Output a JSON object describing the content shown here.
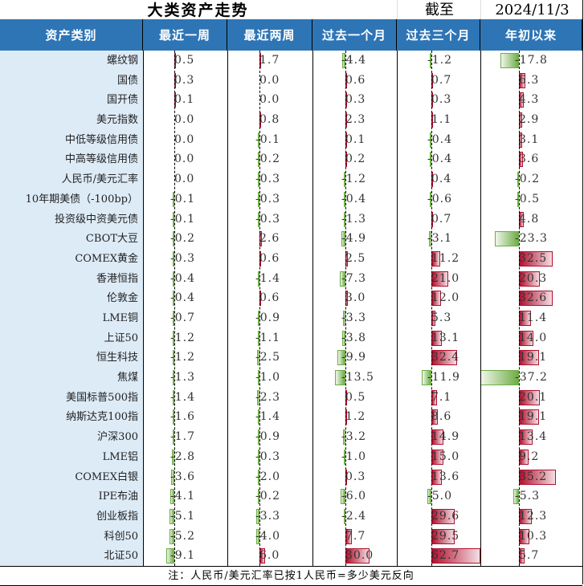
{
  "header": {
    "title": "大类资产走势",
    "as_of_label": "截至",
    "date": "2024/11/3"
  },
  "colors": {
    "header_bg": "#2e75b6",
    "label_bg": "#ddebf7",
    "positive": "#b0102e",
    "negative": "#70ad47"
  },
  "chart_data": {
    "type": "table",
    "title": "大类资产走势",
    "columns": [
      "资产类别",
      "最近一周",
      "最近两周",
      "过去一个月",
      "过去三个月",
      "年初以来"
    ],
    "rows": [
      {
        "asset": "螺纹钢",
        "values": [
          0.5,
          1.7,
          -4.4,
          -1.2,
          -17.8
        ]
      },
      {
        "asset": "国债",
        "values": [
          0.3,
          0.0,
          0.6,
          0.7,
          6.3
        ]
      },
      {
        "asset": "国开债",
        "values": [
          0.1,
          0.0,
          0.3,
          0.3,
          4.3
        ]
      },
      {
        "asset": "美元指数",
        "values": [
          0.0,
          0.8,
          2.3,
          1.1,
          2.9
        ]
      },
      {
        "asset": "中低等级信用债",
        "values": [
          0.0,
          -0.1,
          0.1,
          -0.4,
          3.1
        ]
      },
      {
        "asset": "中高等级信用债",
        "values": [
          0.0,
          -0.2,
          0.2,
          -0.4,
          3.6
        ]
      },
      {
        "asset": "人民币/美元汇率",
        "values": [
          0.0,
          -0.3,
          -1.2,
          0.4,
          -0.2
        ]
      },
      {
        "asset": "10年期美债（-100bp）",
        "values": [
          -0.1,
          -0.3,
          -0.4,
          -0.6,
          -0.5
        ]
      },
      {
        "asset": "投资级中资美元债",
        "values": [
          -0.1,
          -0.3,
          -1.3,
          0.7,
          4.8
        ]
      },
      {
        "asset": "CBOT大豆",
        "values": [
          -0.2,
          2.6,
          -4.9,
          -3.1,
          -23.3
        ]
      },
      {
        "asset": "COMEX黄金",
        "values": [
          -0.3,
          0.6,
          2.5,
          11.2,
          32.5
        ]
      },
      {
        "asset": "香港恒指",
        "values": [
          -0.4,
          -1.4,
          -7.3,
          21.0,
          20.3
        ]
      },
      {
        "asset": "伦敦金",
        "values": [
          -0.4,
          0.6,
          3.0,
          12.0,
          32.6
        ]
      },
      {
        "asset": "LME铜",
        "values": [
          -0.7,
          -0.9,
          -3.3,
          5.3,
          11.4
        ]
      },
      {
        "asset": "上证50",
        "values": [
          -1.2,
          -1.1,
          -3.8,
          13.1,
          14.0
        ]
      },
      {
        "asset": "恒生科技",
        "values": [
          -1.2,
          -2.5,
          -9.9,
          32.4,
          19.1
        ]
      },
      {
        "asset": "焦煤",
        "values": [
          -1.3,
          -1.0,
          -13.5,
          -11.9,
          -37.2
        ]
      },
      {
        "asset": "美国标普500指",
        "values": [
          -1.4,
          -2.3,
          0.5,
          7.1,
          20.1
        ]
      },
      {
        "asset": "纳斯达克100指",
        "values": [
          -1.6,
          -1.4,
          1.2,
          8.6,
          19.1
        ]
      },
      {
        "asset": "沪深300",
        "values": [
          -1.7,
          -0.9,
          -3.2,
          14.9,
          13.4
        ]
      },
      {
        "asset": "LME铝",
        "values": [
          -2.8,
          -0.3,
          -1.0,
          15.0,
          9.2
        ]
      },
      {
        "asset": "COMEX白银",
        "values": [
          -3.6,
          -2.0,
          0.3,
          13.6,
          35.2
        ]
      },
      {
        "asset": "IPE布油",
        "values": [
          -4.1,
          -0.2,
          -6.0,
          -5.0,
          -5.3
        ]
      },
      {
        "asset": "创业板指",
        "values": [
          -5.1,
          -3.3,
          -2.4,
          29.6,
          12.3
        ]
      },
      {
        "asset": "科创50",
        "values": [
          -5.2,
          -4.0,
          7.7,
          29.5,
          10.3
        ]
      },
      {
        "asset": "北证50",
        "values": [
          -9.1,
          6.0,
          30.0,
          62.7,
          5.7
        ]
      }
    ]
  },
  "footer": {
    "note": "注：人民币/美元汇率已按1人民币=多少美元反向"
  }
}
